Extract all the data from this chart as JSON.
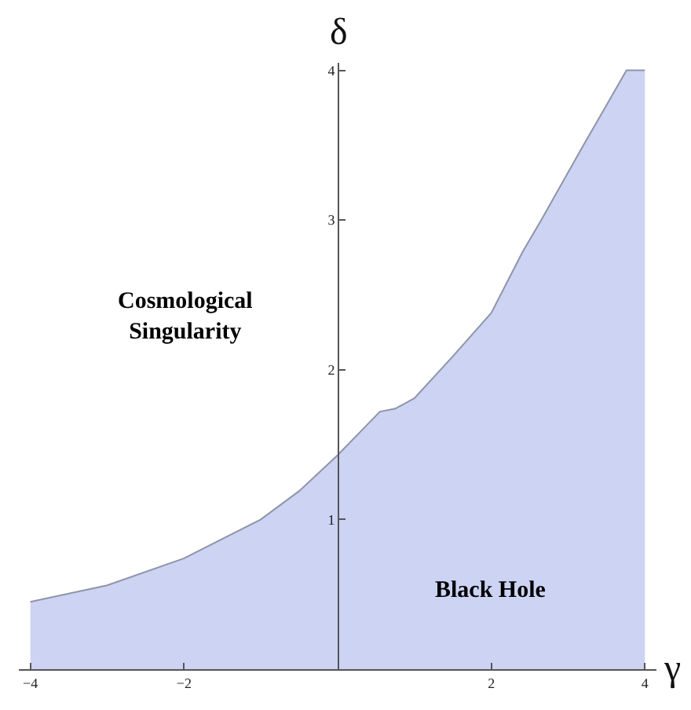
{
  "chart_data": {
    "type": "area",
    "xlabel": "γ",
    "ylabel": "δ",
    "x": [
      -4,
      -3,
      -2,
      -1,
      -0.5,
      0,
      0.55,
      0.75,
      1,
      1.5,
      2,
      2.41,
      2.65,
      3.2,
      3.76,
      4
    ],
    "series": [
      {
        "color": "#ccd3f3",
        "values": [
          0.45,
          0.56,
          0.74,
          1.0,
          1.19,
          1.43,
          1.72,
          1.74,
          1.81,
          2.09,
          2.38,
          2.79,
          3.0,
          3.5,
          4.0,
          4.0
        ]
      }
    ],
    "xlim": [
      -4.15,
      4.15
    ],
    "ylim": [
      0,
      4.05
    ],
    "xticks": [
      -4,
      -2,
      2,
      4
    ],
    "yticks": [
      1,
      2,
      3,
      4
    ],
    "annotations": [
      "Cosmological\nSingularity",
      "Black Hole"
    ]
  }
}
